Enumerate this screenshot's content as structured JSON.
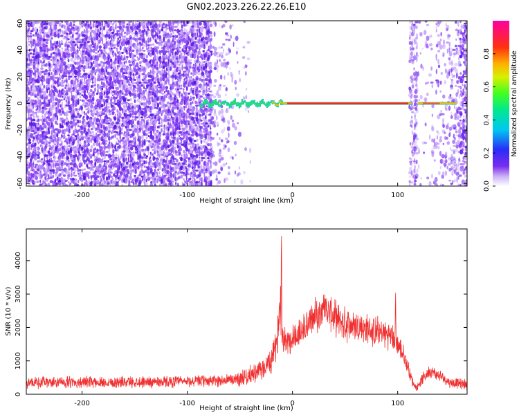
{
  "title": "GN02.2023.226.22.26.E10",
  "colors": {
    "snr_line": "#f03030",
    "noise": "#7a2cf0",
    "axis": "#000000",
    "background": "#ffffff"
  },
  "chart_data": [
    {
      "type": "heatmap",
      "xlabel": "Height of straight line (km)",
      "ylabel": "Frequency (Hz)",
      "xlim": [
        -253,
        166
      ],
      "ylim": [
        -62,
        62
      ],
      "xticks": [
        -200,
        -100,
        0,
        100
      ],
      "yticks": [
        60,
        40,
        20,
        0,
        -20,
        -40,
        -60
      ],
      "xtick_labels": [
        "-200",
        "-100",
        "0",
        "100"
      ],
      "ytick_labels": [
        "60",
        "40",
        "20",
        "0",
        "-20",
        "-40",
        "-60"
      ],
      "colorbar": {
        "label": "Normalized spectral amplitude",
        "range": [
          0.0,
          1.0
        ],
        "ticks": [
          0.0,
          0.2,
          0.4,
          0.6,
          0.8
        ],
        "tick_labels": [
          "0.0",
          "0.2",
          "0.4",
          "0.6",
          "0.8"
        ],
        "colormap": "rainbow (white-violet-blue-cyan-green-yellow-red-magenta)"
      },
      "signal_track": {
        "description": "narrow high-amplitude band near 0 Hz",
        "x_start": -88,
        "x_end": 155,
        "frequency": 0,
        "gap": [
          112,
          119
        ]
      },
      "noise_regions": [
        {
          "x_start": -253,
          "x_end": -78,
          "density": "dense"
        },
        {
          "x_start": -78,
          "x_end": -40,
          "density": "sparse"
        },
        {
          "x_start": 110,
          "x_end": 118,
          "density": "medium"
        },
        {
          "x_start": 118,
          "x_end": 166,
          "density": "sparse-to-dense"
        }
      ]
    },
    {
      "type": "line",
      "xlabel": "Height of straight line (km)",
      "ylabel": "SNR (10 * v/v)",
      "xlim": [
        -253,
        166
      ],
      "ylim": [
        0,
        4950
      ],
      "xticks": [
        -200,
        -100,
        0,
        100
      ],
      "yticks": [
        0,
        1000,
        2000,
        3000,
        4000
      ],
      "xtick_labels": [
        "-200",
        "-100",
        "0",
        "100"
      ],
      "ytick_labels": [
        "0",
        "1000",
        "2000",
        "3000",
        "4000"
      ],
      "series": [
        {
          "x": [
            -253,
            -200,
            -150,
            -100,
            -60,
            -45,
            -30,
            -20,
            -15,
            -12,
            -10,
            -8,
            -5,
            0,
            10,
            20,
            30,
            40,
            50,
            60,
            70,
            80,
            90,
            95,
            100,
            105,
            110,
            115,
            118,
            122,
            130,
            140,
            150,
            166
          ],
          "values": [
            350,
            360,
            370,
            380,
            420,
            520,
            700,
            1000,
            1500,
            2600,
            1800,
            1700,
            1600,
            1700,
            1900,
            2300,
            2600,
            2300,
            2100,
            2050,
            1950,
            1850,
            1800,
            1700,
            1500,
            1200,
            800,
            300,
            200,
            400,
            700,
            550,
            350,
            300
          ],
          "noise_amplitude": [
            200,
            200,
            200,
            200,
            220,
            300,
            350,
            450,
            550,
            700,
            500,
            500,
            500,
            550,
            600,
            600,
            600,
            600,
            600,
            600,
            550,
            550,
            500,
            480,
            420,
            360,
            280,
            140,
            120,
            180,
            220,
            200,
            180,
            180
          ],
          "spikes": [
            {
              "x": -10.5,
              "value": 4950
            },
            {
              "x": -11.3,
              "value": 3450
            },
            {
              "x": 98,
              "value": 3100
            },
            {
              "x": 30,
              "value": 3000
            }
          ]
        }
      ]
    }
  ]
}
